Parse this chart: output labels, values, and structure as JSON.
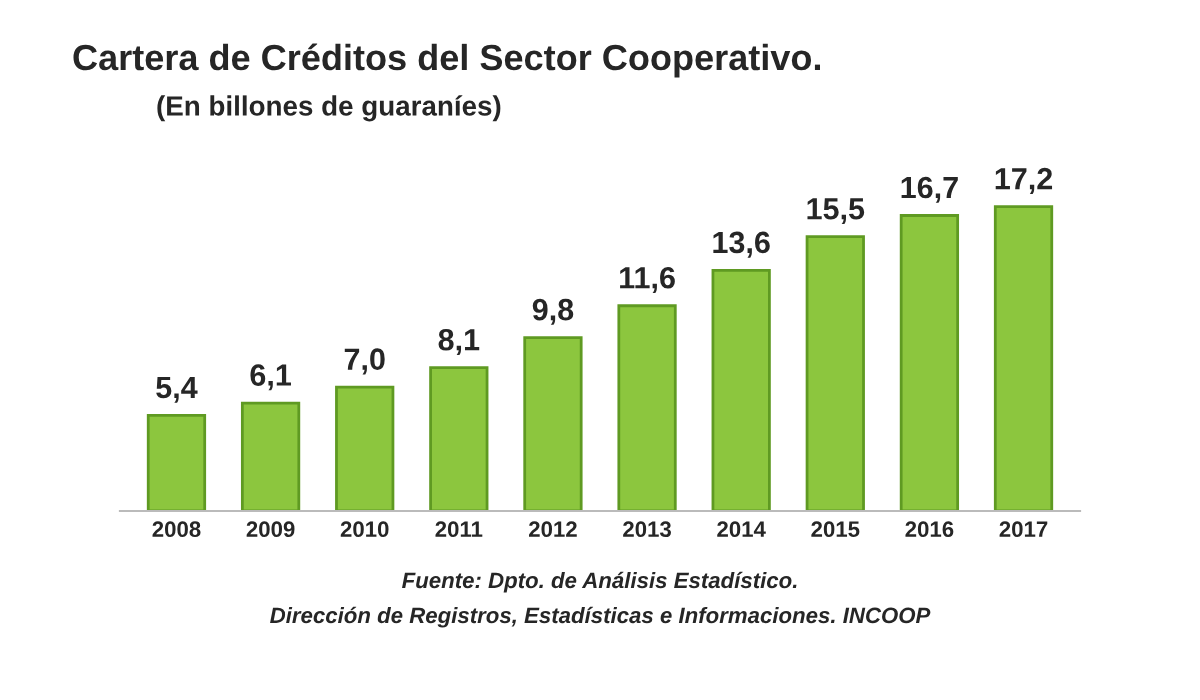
{
  "chart_data": {
    "type": "bar",
    "title": "Cartera de Créditos del Sector Cooperativo.",
    "subtitle": "(En billones de guaraníes)",
    "categories": [
      "2008",
      "2009",
      "2010",
      "2011",
      "2012",
      "2013",
      "2014",
      "2015",
      "2016",
      "2017"
    ],
    "values": [
      5.4,
      6.1,
      7.0,
      8.1,
      9.8,
      11.6,
      13.6,
      15.5,
      16.7,
      17.2
    ],
    "value_labels": [
      "5,4",
      "6,1",
      "7,0",
      "8,1",
      "9,8",
      "11,6",
      "13,6",
      "15,5",
      "16,7",
      "17,2"
    ],
    "color": "#8cc63e",
    "tick_labels": "x",
    "grid": false,
    "legend": false,
    "annotations": [
      "Fuente: Dpto. de Análisis Estadístico.",
      "Dirección de Registros, Estadísticas e Informaciones. INCOOP"
    ]
  }
}
